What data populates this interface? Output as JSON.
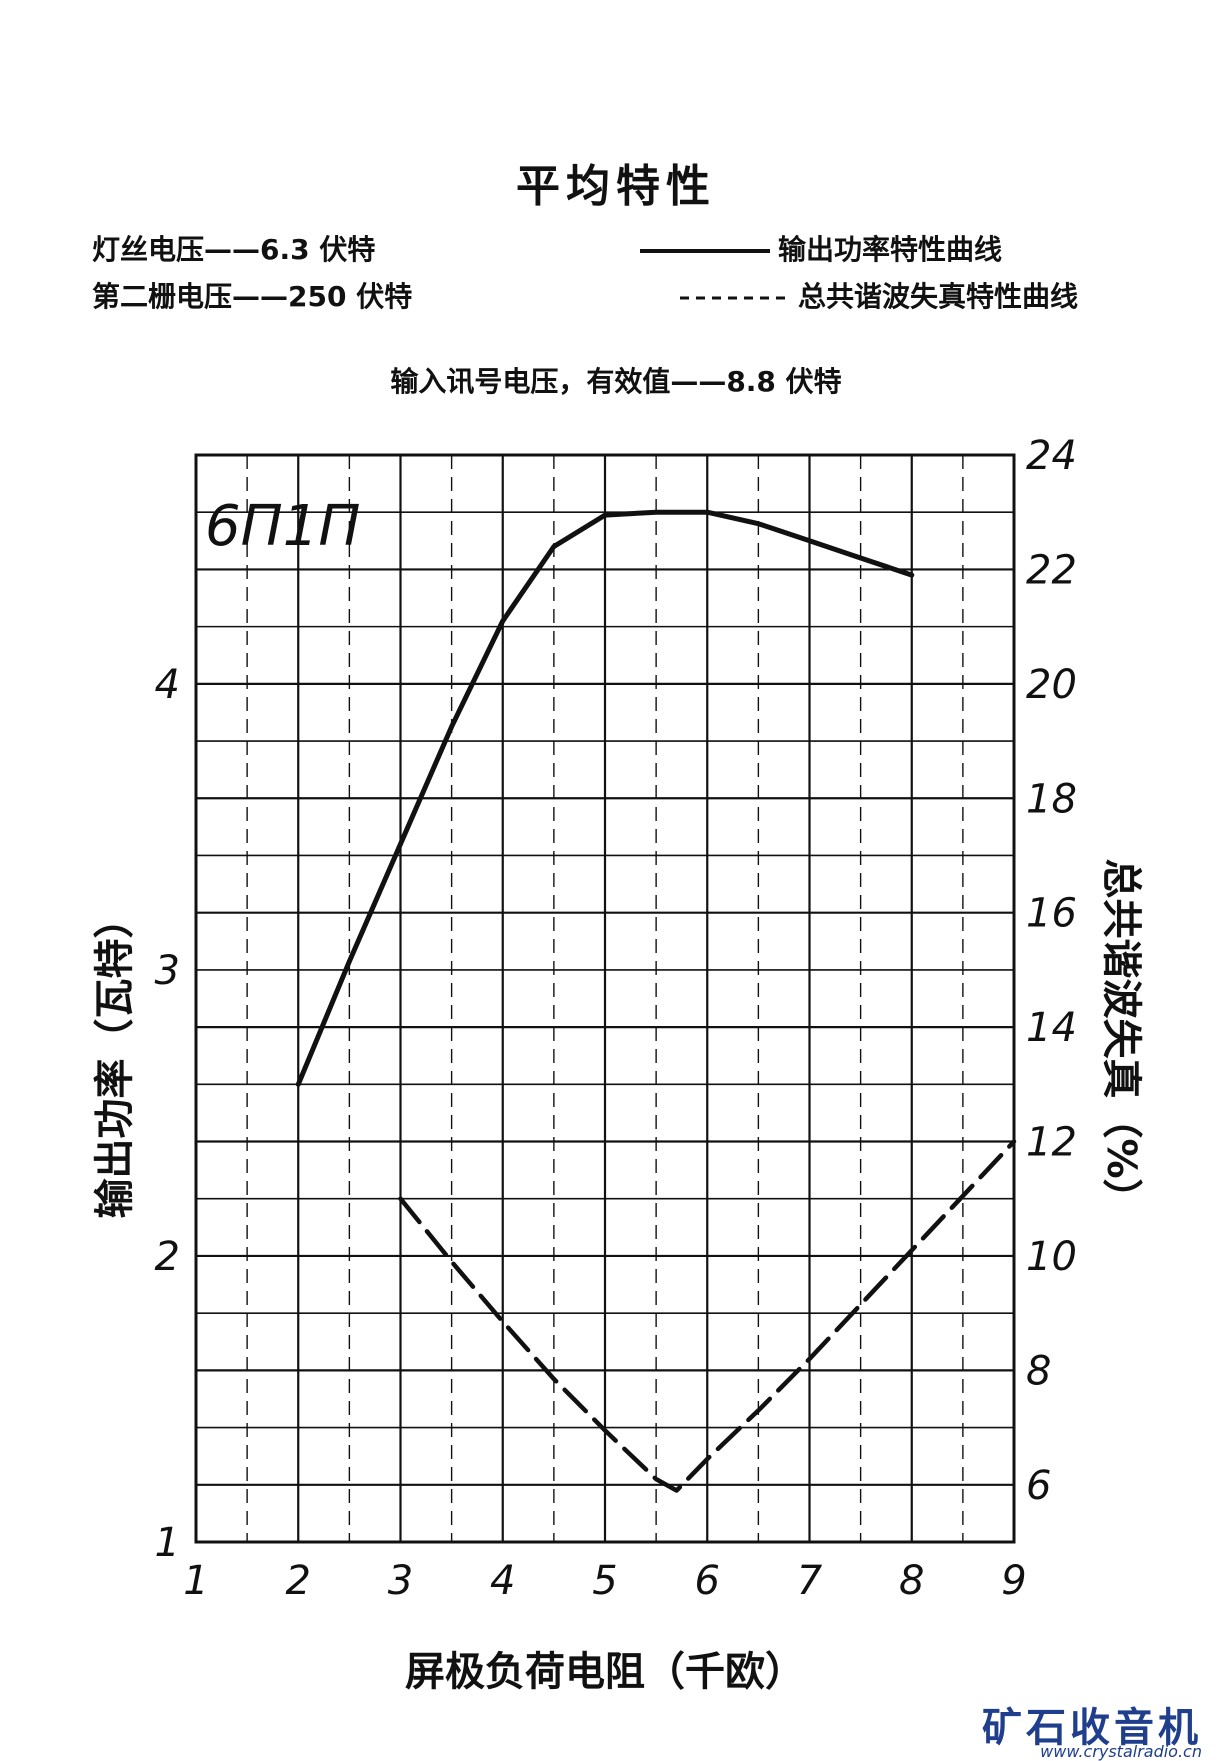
{
  "page_title": "平均特性",
  "conditions": {
    "filament": "灯丝电压——6.3 伏特",
    "screen": "第二栅电压——250 伏特",
    "input": "输入讯号电压，有效值——8.8 伏特"
  },
  "legend": {
    "solid": "输出功率特性曲线",
    "dashed": "总共谐波失真特性曲线"
  },
  "watermark": {
    "title": "矿石收音机",
    "url": "www.crystalradio.cn"
  },
  "colors": {
    "ink": "#111111",
    "watermark": "#1f3e8c"
  },
  "chart_data": {
    "type": "line",
    "model_label": "6П1П",
    "xlabel": "屏极负荷电阻（千欧）",
    "ylabel_left": "输出功率（瓦特）",
    "ylabel_right": "总共谐波失真（%）",
    "xlim": [
      1,
      9
    ],
    "ylim_left": [
      1,
      4.8
    ],
    "ylim_right": [
      5,
      24
    ],
    "x_ticks": [
      "1",
      "2",
      "3",
      "4",
      "5",
      "6",
      "7",
      "8",
      "9"
    ],
    "y_left_ticks": [
      "1",
      "2",
      "3",
      "4"
    ],
    "y_right_ticks": [
      "6",
      "8",
      "10",
      "12",
      "14",
      "16",
      "18",
      "20",
      "22",
      "24"
    ],
    "series": [
      {
        "name": "输出功率特性曲线",
        "axis": "left",
        "style": "solid",
        "x": [
          2.0,
          2.5,
          3.0,
          3.5,
          4.0,
          4.5,
          5.0,
          5.5,
          6.0,
          6.5,
          7.0,
          7.5,
          8.0
        ],
        "y": [
          2.6,
          3.03,
          3.44,
          3.85,
          4.22,
          4.48,
          4.59,
          4.6,
          4.6,
          4.56,
          4.5,
          4.44,
          4.38
        ]
      },
      {
        "name": "总共谐波失真特性曲线",
        "axis": "right",
        "style": "dashed",
        "x": [
          3.0,
          3.5,
          4.0,
          4.5,
          5.0,
          5.5,
          5.7,
          6.0,
          6.5,
          7.0,
          7.5,
          8.0,
          8.5,
          9.0
        ],
        "y": [
          11.0,
          9.9,
          8.85,
          7.85,
          6.95,
          6.1,
          5.9,
          6.45,
          7.3,
          8.2,
          9.15,
          10.1,
          11.05,
          12.0
        ]
      }
    ]
  }
}
